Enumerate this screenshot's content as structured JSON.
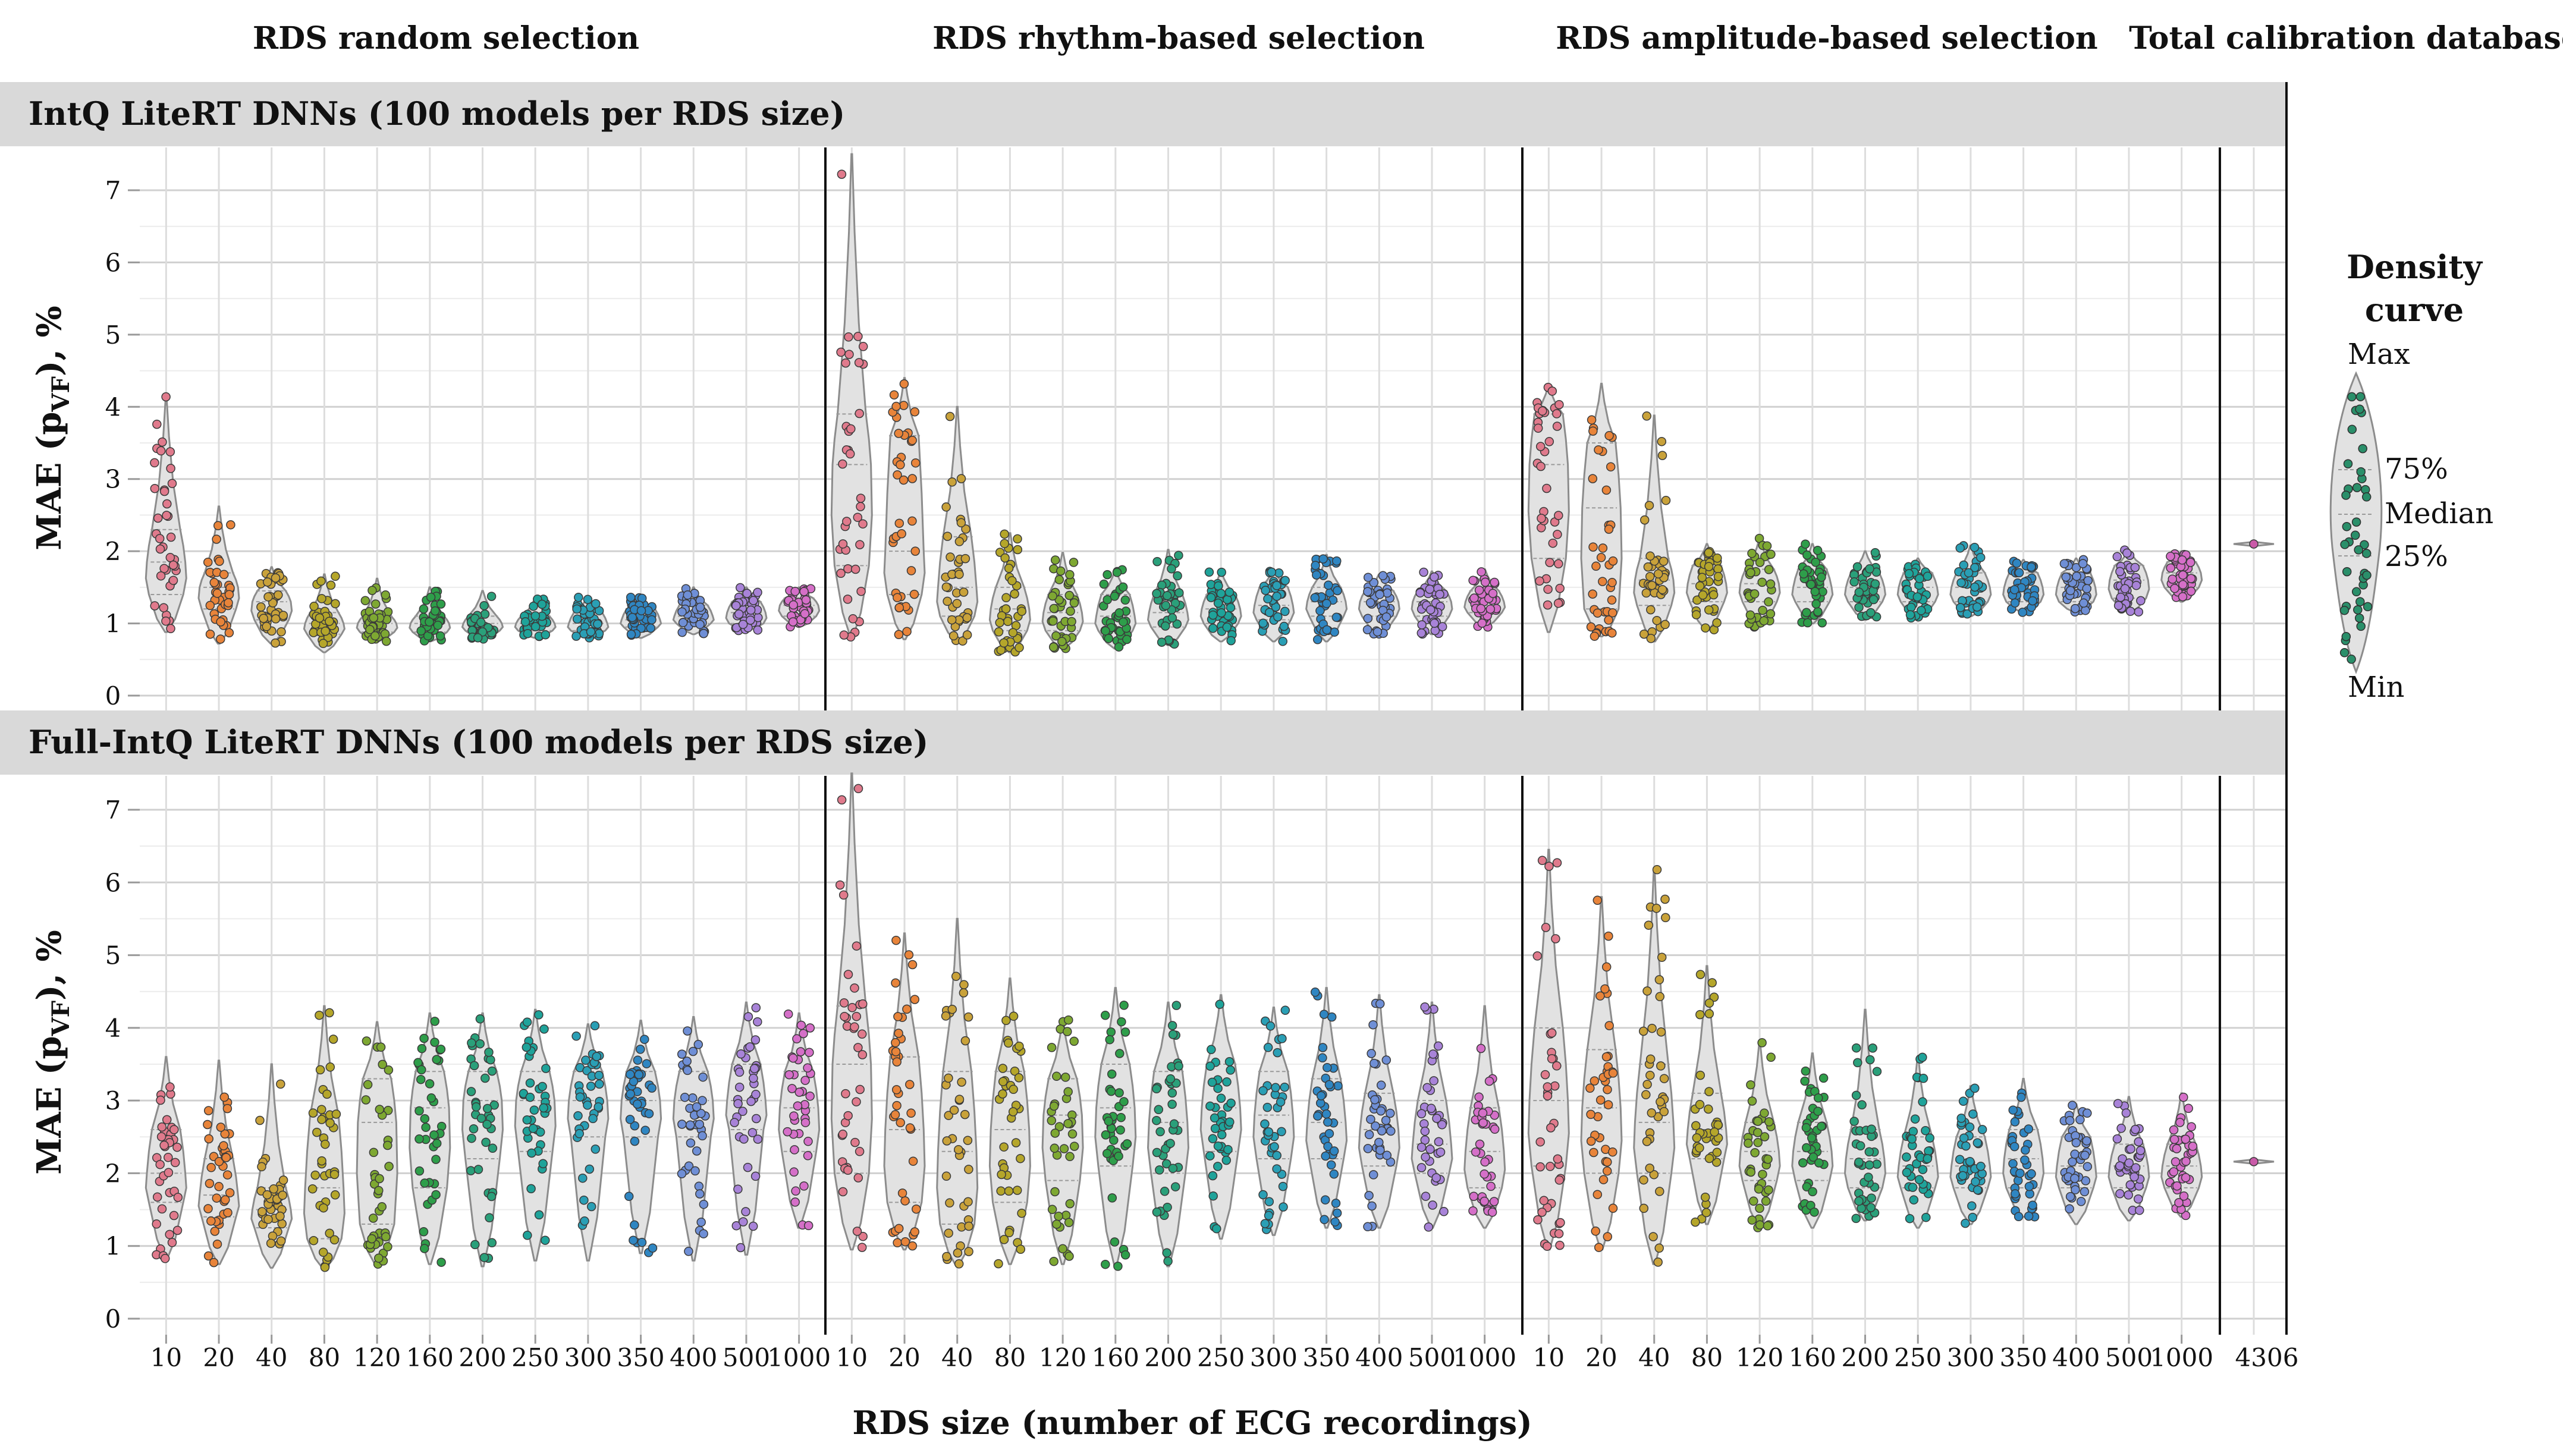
{
  "chart_data": {
    "type": "violin",
    "column_titles": [
      "RDS random selection",
      "RDS rhythm-based selection",
      "RDS amplitude-based selection",
      "Total calibration database"
    ],
    "row_titles": [
      "IntQ LiteRT DNNs (100 models per RDS size)",
      "Full-IntQ LiteRT DNNs (100 models per RDS size)"
    ],
    "ylabel_main": "MAE (p",
    "ylabel_sub": "VF",
    "ylabel_tail": "), %",
    "xlabel": "RDS size (number of ECG recordings)",
    "ylim": [
      0,
      7.5
    ],
    "yticks": [
      "0",
      "1",
      "2",
      "3",
      "4",
      "5",
      "6",
      "7"
    ],
    "categories": [
      "10",
      "20",
      "40",
      "80",
      "120",
      "160",
      "200",
      "250",
      "300",
      "350",
      "400",
      "500",
      "1000"
    ],
    "total_category": "4306",
    "category_colors": [
      "#e07a8c",
      "#e8843a",
      "#c9a23a",
      "#b5a62a",
      "#7ea832",
      "#2e9e4a",
      "#2aa07a",
      "#1fa39a",
      "#2a9fb5",
      "#2f86c2",
      "#6f8fd6",
      "#a883d8",
      "#d56fc8"
    ],
    "series": [
      {
        "row": "IntQ LiteRT DNNs (100 models per RDS size)",
        "selection": "RDS random selection",
        "min": [
          0.88,
          0.72,
          0.72,
          0.6,
          0.75,
          0.75,
          0.78,
          0.8,
          0.8,
          0.8,
          0.85,
          0.9,
          0.95
        ],
        "q1": [
          1.4,
          1.2,
          1.05,
          0.85,
          0.88,
          0.88,
          0.9,
          0.9,
          0.9,
          0.95,
          1.0,
          1.0,
          1.1
        ],
        "median": [
          1.85,
          1.5,
          1.3,
          1.0,
          1.0,
          1.0,
          1.0,
          1.0,
          1.0,
          1.05,
          1.1,
          1.15,
          1.25
        ],
        "q3": [
          2.3,
          1.7,
          1.45,
          1.15,
          1.1,
          1.1,
          1.1,
          1.1,
          1.15,
          1.2,
          1.25,
          1.3,
          1.35
        ],
        "max": [
          4.15,
          2.62,
          1.78,
          1.68,
          1.62,
          1.5,
          1.45,
          1.35,
          1.38,
          1.38,
          1.5,
          1.5,
          1.5
        ]
      },
      {
        "row": "IntQ LiteRT DNNs (100 models per RDS size)",
        "selection": "RDS rhythm-based selection",
        "min": [
          0.8,
          0.78,
          0.75,
          0.6,
          0.65,
          0.65,
          0.7,
          0.75,
          0.75,
          0.75,
          0.85,
          0.85,
          0.95
        ],
        "q1": [
          1.8,
          1.4,
          1.1,
          0.9,
          0.9,
          0.9,
          0.95,
          1.0,
          1.05,
          1.1,
          1.1,
          1.1,
          1.15
        ],
        "median": [
          3.2,
          2.0,
          1.5,
          1.2,
          1.15,
          1.1,
          1.15,
          1.2,
          1.25,
          1.3,
          1.3,
          1.3,
          1.3
        ],
        "q3": [
          3.9,
          3.6,
          2.2,
          1.5,
          1.4,
          1.4,
          1.4,
          1.4,
          1.5,
          1.5,
          1.45,
          1.45,
          1.45
        ],
        "max": [
          7.5,
          4.4,
          4.0,
          2.25,
          1.98,
          1.75,
          2.02,
          1.72,
          1.75,
          1.95,
          1.68,
          1.72,
          1.75
        ]
      },
      {
        "row": "IntQ LiteRT DNNs (100 models per RDS size)",
        "selection": "RDS amplitude-based selection",
        "min": [
          0.88,
          0.82,
          0.75,
          0.9,
          0.95,
          1.0,
          1.05,
          1.05,
          1.1,
          1.15,
          1.15,
          1.15,
          1.3
        ],
        "q1": [
          1.9,
          1.2,
          1.25,
          1.3,
          1.3,
          1.3,
          1.3,
          1.3,
          1.3,
          1.3,
          1.3,
          1.35,
          1.5
        ],
        "median": [
          3.2,
          2.6,
          1.6,
          1.55,
          1.55,
          1.5,
          1.5,
          1.5,
          1.5,
          1.5,
          1.5,
          1.6,
          1.7
        ],
        "q3": [
          3.9,
          3.5,
          1.9,
          1.8,
          1.75,
          1.75,
          1.7,
          1.7,
          1.7,
          1.7,
          1.7,
          1.8,
          1.85
        ],
        "max": [
          4.3,
          4.32,
          3.88,
          2.1,
          2.18,
          2.1,
          2.0,
          1.9,
          2.08,
          1.88,
          1.9,
          2.02,
          2.0
        ]
      },
      {
        "row": "Full-IntQ LiteRT DNNs (100 models per RDS size)",
        "selection": "RDS random selection",
        "min": [
          0.82,
          0.75,
          0.7,
          0.68,
          0.72,
          0.75,
          0.72,
          0.8,
          0.8,
          0.9,
          0.8,
          0.88,
          1.25
        ],
        "q1": [
          1.6,
          1.4,
          1.25,
          1.1,
          1.3,
          1.8,
          2.2,
          2.3,
          2.5,
          2.5,
          2.5,
          2.6,
          2.3
        ],
        "median": [
          2.0,
          1.7,
          1.5,
          1.8,
          2.7,
          2.9,
          3.0,
          3.0,
          3.0,
          3.0,
          3.0,
          3.0,
          2.9
        ],
        "q3": [
          2.6,
          2.2,
          1.8,
          2.8,
          3.3,
          3.4,
          3.4,
          3.4,
          3.4,
          3.4,
          3.4,
          3.5,
          3.4
        ],
        "max": [
          3.6,
          3.55,
          3.5,
          4.3,
          4.08,
          4.2,
          4.2,
          4.25,
          4.05,
          4.1,
          4.15,
          4.35,
          4.2
        ]
      },
      {
        "row": "Full-IntQ LiteRT DNNs (100 models per RDS size)",
        "selection": "RDS rhythm-based selection",
        "min": [
          0.95,
          0.95,
          0.72,
          0.75,
          0.75,
          0.72,
          0.72,
          1.1,
          1.15,
          1.25,
          1.25,
          1.25,
          1.25
        ],
        "q1": [
          2.0,
          1.6,
          1.3,
          1.6,
          1.9,
          2.1,
          2.0,
          2.3,
          2.2,
          2.2,
          2.1,
          2.0,
          1.8
        ],
        "median": [
          3.5,
          2.6,
          2.3,
          2.6,
          2.8,
          2.9,
          2.7,
          2.9,
          2.8,
          2.7,
          2.6,
          2.4,
          2.3
        ],
        "q3": [
          4.3,
          3.6,
          3.4,
          3.4,
          3.3,
          3.5,
          3.4,
          3.5,
          3.4,
          3.3,
          3.1,
          3.0,
          2.9
        ],
        "max": [
          7.5,
          5.3,
          5.5,
          4.68,
          4.12,
          4.55,
          4.35,
          4.45,
          4.28,
          4.55,
          4.45,
          4.35,
          4.3
        ]
      },
      {
        "row": "Full-IntQ LiteRT DNNs (100 models per RDS size)",
        "selection": "RDS amplitude-based selection",
        "min": [
          0.95,
          0.95,
          0.75,
          1.3,
          1.25,
          1.25,
          1.35,
          1.25,
          1.3,
          1.4,
          1.3,
          1.35,
          1.4
        ],
        "q1": [
          2.1,
          2.0,
          2.0,
          2.2,
          1.9,
          1.9,
          1.8,
          1.8,
          1.8,
          1.8,
          1.8,
          1.8,
          1.8
        ],
        "median": [
          3.0,
          2.9,
          2.7,
          2.6,
          2.3,
          2.3,
          2.2,
          2.1,
          2.1,
          2.2,
          2.1,
          2.1,
          2.1
        ],
        "q3": [
          4.0,
          3.7,
          3.5,
          3.1,
          2.7,
          2.7,
          2.6,
          2.5,
          2.5,
          2.6,
          2.5,
          2.4,
          2.4
        ],
        "max": [
          6.45,
          5.8,
          6.2,
          4.85,
          3.8,
          3.65,
          4.25,
          3.6,
          3.2,
          3.3,
          2.95,
          3.05,
          3.1
        ]
      }
    ],
    "total_database": [
      {
        "row": "IntQ LiteRT DNNs (100 models per RDS size)",
        "category": "4306",
        "min": 2.07,
        "median": 2.1,
        "max": 2.13
      },
      {
        "row": "Full-IntQ LiteRT DNNs (100 models per RDS size)",
        "category": "4306",
        "min": 2.13,
        "median": 2.16,
        "max": 2.19
      }
    ],
    "legend": {
      "title_line1": "Density",
      "title_line2": "curve",
      "labels": [
        "Max",
        "75%",
        "Median",
        "25%",
        "Min"
      ],
      "position": "right"
    }
  }
}
